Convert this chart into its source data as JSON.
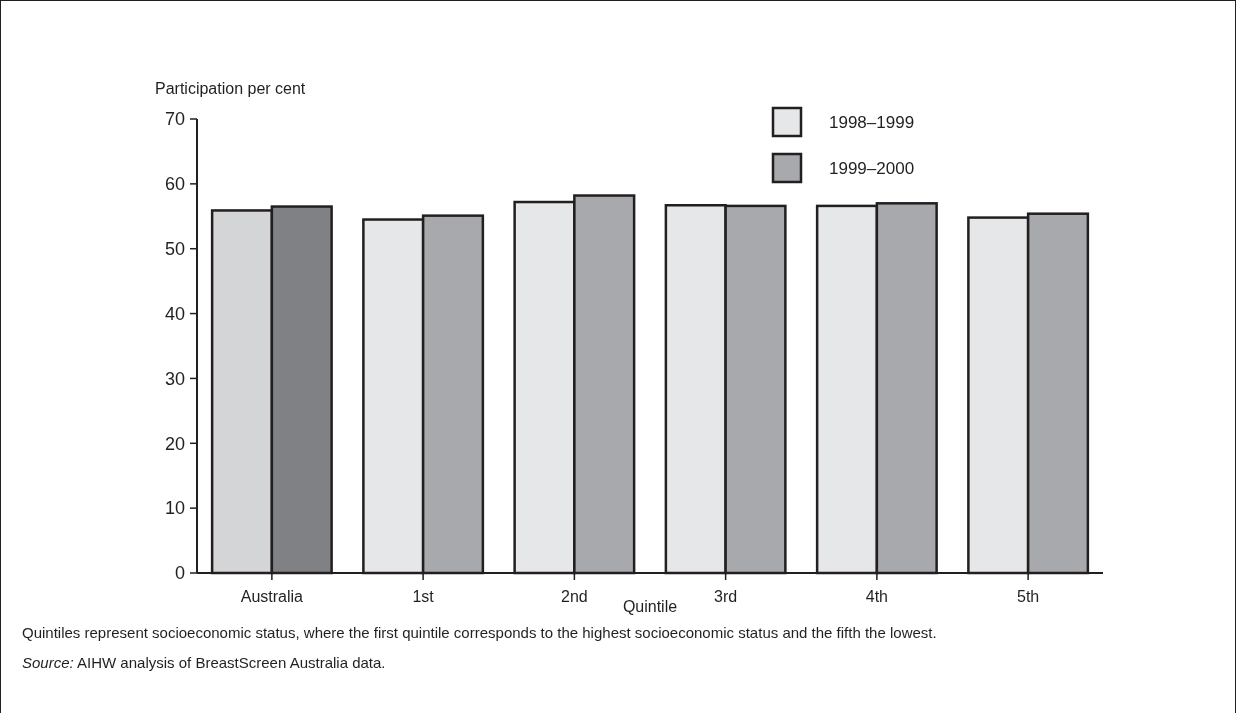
{
  "chart_data": {
    "type": "bar",
    "ylabel": "Participation per cent",
    "xlabel": "Quintile",
    "categories": [
      "Australia",
      "1st",
      "2nd",
      "3rd",
      "4th",
      "5th"
    ],
    "series": [
      {
        "name": "1998–1999",
        "color": "#e6e7e8",
        "colors": [
          "#d4d5d7",
          "#e6e7e8",
          "#e6e7e8",
          "#e6e7e8",
          "#e6e7e8",
          "#e6e7e8"
        ],
        "values": [
          55.9,
          54.5,
          57.2,
          56.7,
          56.6,
          54.8
        ]
      },
      {
        "name": "1999–2000",
        "color": "#a7a9ac",
        "colors": [
          "#808184",
          "#a7a9ac",
          "#a7a9ac",
          "#a7a9ac",
          "#a7a9ac",
          "#a7a9ac"
        ],
        "values": [
          56.5,
          55.1,
          58.2,
          56.6,
          57.0,
          55.4
        ]
      }
    ],
    "ylim": [
      0,
      70
    ],
    "yticks": [
      0,
      10,
      20,
      30,
      40,
      50,
      60,
      70
    ],
    "grid": false,
    "legend": "top right",
    "annotations": [
      "Quintiles represent socioeconomic status, where the first quintile corresponds to the highest socioeconomic status and the fifth the lowest.",
      "Source: AIHW analysis of BreastScreen Australia data."
    ]
  }
}
